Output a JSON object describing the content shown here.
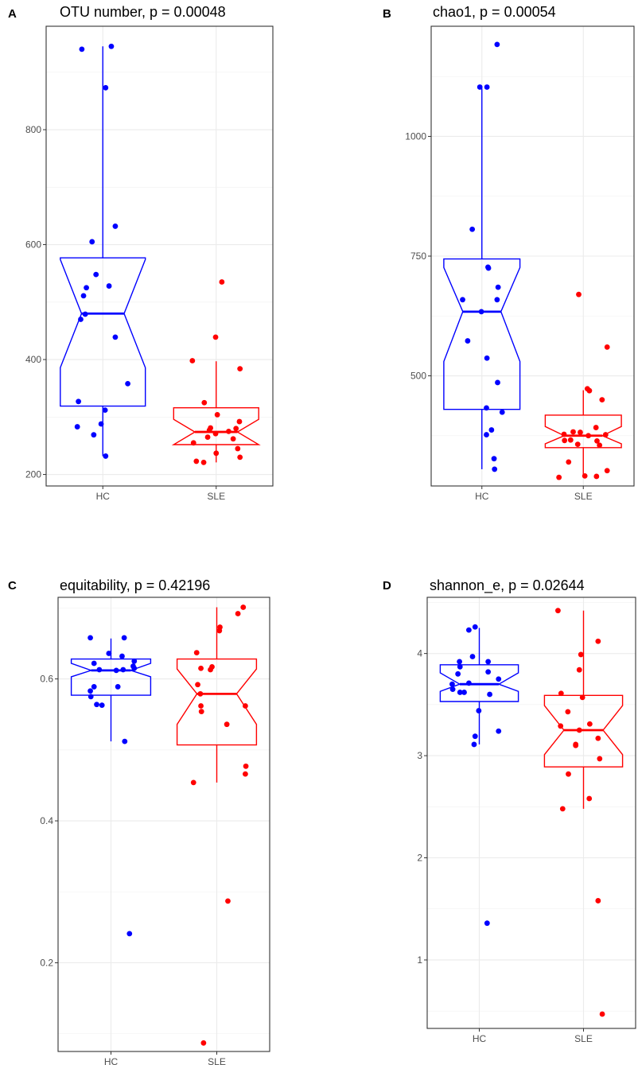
{
  "chart_data": [
    {
      "type": "boxplot",
      "panel_label": "A",
      "title": "OTU number, p = 0.00048",
      "categories": [
        "HC",
        "SLE"
      ],
      "ylim": [
        180,
        980
      ],
      "yticks": [
        200,
        400,
        600,
        800
      ],
      "grid": true,
      "notched": true,
      "series": [
        {
          "name": "HC",
          "color": "#0000ff",
          "box": {
            "whisker_low": 232,
            "q1": 319,
            "median": 480,
            "q3": 577,
            "whisker_high": 945,
            "notch_low": 386,
            "notch_high": 574
          },
          "points": [
            {
              "jitter": -0.37,
              "y": 940
            },
            {
              "jitter": 0.15,
              "y": 945
            },
            {
              "jitter": 0.05,
              "y": 873
            },
            {
              "jitter": 0.22,
              "y": 632
            },
            {
              "jitter": -0.19,
              "y": 605
            },
            {
              "jitter": -0.12,
              "y": 548
            },
            {
              "jitter": 0.11,
              "y": 528
            },
            {
              "jitter": -0.29,
              "y": 525
            },
            {
              "jitter": -0.34,
              "y": 511
            },
            {
              "jitter": -0.31,
              "y": 479
            },
            {
              "jitter": -0.39,
              "y": 470
            },
            {
              "jitter": 0.22,
              "y": 439
            },
            {
              "jitter": 0.44,
              "y": 358
            },
            {
              "jitter": -0.43,
              "y": 327
            },
            {
              "jitter": 0.04,
              "y": 312
            },
            {
              "jitter": -0.03,
              "y": 288
            },
            {
              "jitter": -0.45,
              "y": 283
            },
            {
              "jitter": -0.16,
              "y": 269
            },
            {
              "jitter": 0.05,
              "y": 232
            }
          ]
        },
        {
          "name": "SLE",
          "color": "#ff0000",
          "box": {
            "whisker_low": 221,
            "q1": 252,
            "median": 274,
            "q3": 316,
            "whisker_high": 397,
            "notch_low": 252,
            "notch_high": 296
          },
          "points": [
            {
              "jitter": 0.1,
              "y": 535
            },
            {
              "jitter": -0.01,
              "y": 439
            },
            {
              "jitter": -0.42,
              "y": 398
            },
            {
              "jitter": 0.42,
              "y": 384
            },
            {
              "jitter": -0.21,
              "y": 325
            },
            {
              "jitter": 0.02,
              "y": 304
            },
            {
              "jitter": 0.41,
              "y": 292
            },
            {
              "jitter": -0.1,
              "y": 281
            },
            {
              "jitter": 0.35,
              "y": 280
            },
            {
              "jitter": -0.12,
              "y": 277
            },
            {
              "jitter": 0.22,
              "y": 275
            },
            {
              "jitter": -0.01,
              "y": 271
            },
            {
              "jitter": 0.3,
              "y": 262
            },
            {
              "jitter": -0.15,
              "y": 265
            },
            {
              "jitter": -0.4,
              "y": 255
            },
            {
              "jitter": 0.38,
              "y": 245
            },
            {
              "jitter": 0.0,
              "y": 237
            },
            {
              "jitter": 0.42,
              "y": 230
            },
            {
              "jitter": -0.35,
              "y": 223
            },
            {
              "jitter": -0.22,
              "y": 221
            }
          ]
        }
      ]
    },
    {
      "type": "boxplot",
      "panel_label": "B",
      "title": "chao1, p = 0.00054",
      "categories": [
        "HC",
        "SLE"
      ],
      "ylim": [
        270,
        1230
      ],
      "yticks": [
        500,
        750,
        1000
      ],
      "grid": true,
      "notched": true,
      "series": [
        {
          "name": "HC",
          "color": "#0000ff",
          "box": {
            "whisker_low": 305,
            "q1": 430,
            "median": 634,
            "q3": 744,
            "whisker_high": 1100,
            "notch_low": 530,
            "notch_high": 726
          },
          "points": [
            {
              "jitter": 0.3,
              "y": 1192
            },
            {
              "jitter": -0.04,
              "y": 1103
            },
            {
              "jitter": 0.1,
              "y": 1103
            },
            {
              "jitter": -0.19,
              "y": 806
            },
            {
              "jitter": 0.12,
              "y": 727
            },
            {
              "jitter": 0.13,
              "y": 725
            },
            {
              "jitter": 0.32,
              "y": 685
            },
            {
              "jitter": -0.38,
              "y": 659
            },
            {
              "jitter": 0.3,
              "y": 659
            },
            {
              "jitter": -0.01,
              "y": 634
            },
            {
              "jitter": -0.28,
              "y": 573
            },
            {
              "jitter": 0.1,
              "y": 537
            },
            {
              "jitter": 0.31,
              "y": 486
            },
            {
              "jitter": 0.4,
              "y": 424
            },
            {
              "jitter": 0.09,
              "y": 433
            },
            {
              "jitter": 0.19,
              "y": 387
            },
            {
              "jitter": 0.09,
              "y": 377
            },
            {
              "jitter": 0.24,
              "y": 327
            },
            {
              "jitter": 0.25,
              "y": 305
            }
          ]
        },
        {
          "name": "SLE",
          "color": "#ff0000",
          "box": {
            "whisker_low": 290,
            "q1": 350,
            "median": 375,
            "q3": 418,
            "whisker_high": 470,
            "notch_low": 358,
            "notch_high": 394
          },
          "points": [
            {
              "jitter": -0.09,
              "y": 670
            },
            {
              "jitter": 0.47,
              "y": 560
            },
            {
              "jitter": 0.08,
              "y": 473
            },
            {
              "jitter": 0.12,
              "y": 469
            },
            {
              "jitter": 0.37,
              "y": 450
            },
            {
              "jitter": 0.25,
              "y": 392
            },
            {
              "jitter": 0.44,
              "y": 377
            },
            {
              "jitter": -0.38,
              "y": 378
            },
            {
              "jitter": -0.2,
              "y": 383
            },
            {
              "jitter": -0.06,
              "y": 382
            },
            {
              "jitter": 0.1,
              "y": 375
            },
            {
              "jitter": -0.25,
              "y": 366
            },
            {
              "jitter": -0.37,
              "y": 365
            },
            {
              "jitter": 0.27,
              "y": 364
            },
            {
              "jitter": -0.11,
              "y": 357
            },
            {
              "jitter": 0.32,
              "y": 355
            },
            {
              "jitter": -0.29,
              "y": 320
            },
            {
              "jitter": 0.47,
              "y": 302
            },
            {
              "jitter": -0.48,
              "y": 288
            },
            {
              "jitter": 0.03,
              "y": 291
            },
            {
              "jitter": 0.26,
              "y": 290
            }
          ]
        }
      ]
    },
    {
      "type": "boxplot",
      "panel_label": "C",
      "title": "equitability, p =  0.42196",
      "categories": [
        "HC",
        "SLE"
      ],
      "ylim": [
        0.075,
        0.715
      ],
      "yticks": [
        0.2,
        0.4,
        0.6
      ],
      "grid": true,
      "notched": true,
      "series": [
        {
          "name": "HC",
          "color": "#0000ff",
          "box": {
            "whisker_low": 0.512,
            "q1": 0.577,
            "median": 0.612,
            "q3": 0.628,
            "whisker_high": 0.657,
            "notch_low": 0.603,
            "notch_high": 0.622
          },
          "points": [
            {
              "jitter": -0.39,
              "y": 0.658
            },
            {
              "jitter": 0.25,
              "y": 0.658
            },
            {
              "jitter": -0.04,
              "y": 0.636
            },
            {
              "jitter": 0.21,
              "y": 0.632
            },
            {
              "jitter": -0.32,
              "y": 0.622
            },
            {
              "jitter": 0.44,
              "y": 0.625
            },
            {
              "jitter": 0.42,
              "y": 0.618
            },
            {
              "jitter": 0.44,
              "y": 0.615
            },
            {
              "jitter": -0.22,
              "y": 0.613
            },
            {
              "jitter": 0.23,
              "y": 0.613
            },
            {
              "jitter": 0.1,
              "y": 0.612
            },
            {
              "jitter": -0.32,
              "y": 0.589
            },
            {
              "jitter": 0.13,
              "y": 0.589
            },
            {
              "jitter": -0.39,
              "y": 0.583
            },
            {
              "jitter": -0.38,
              "y": 0.575
            },
            {
              "jitter": -0.27,
              "y": 0.564
            },
            {
              "jitter": -0.17,
              "y": 0.563
            },
            {
              "jitter": 0.26,
              "y": 0.512
            },
            {
              "jitter": 0.35,
              "y": 0.241
            }
          ]
        },
        {
          "name": "SLE",
          "color": "#ff0000",
          "box": {
            "whisker_low": 0.454,
            "q1": 0.507,
            "median": 0.579,
            "q3": 0.628,
            "whisker_high": 0.701,
            "notch_low": 0.536,
            "notch_high": 0.614
          },
          "points": [
            {
              "jitter": 0.5,
              "y": 0.701
            },
            {
              "jitter": 0.4,
              "y": 0.692
            },
            {
              "jitter": 0.06,
              "y": 0.673
            },
            {
              "jitter": 0.05,
              "y": 0.668
            },
            {
              "jitter": -0.38,
              "y": 0.637
            },
            {
              "jitter": -0.3,
              "y": 0.615
            },
            {
              "jitter": -0.09,
              "y": 0.617
            },
            {
              "jitter": -0.12,
              "y": 0.613
            },
            {
              "jitter": -0.36,
              "y": 0.592
            },
            {
              "jitter": -0.31,
              "y": 0.579
            },
            {
              "jitter": -0.3,
              "y": 0.562
            },
            {
              "jitter": 0.54,
              "y": 0.562
            },
            {
              "jitter": -0.29,
              "y": 0.554
            },
            {
              "jitter": 0.19,
              "y": 0.536
            },
            {
              "jitter": 0.55,
              "y": 0.477
            },
            {
              "jitter": 0.54,
              "y": 0.466
            },
            {
              "jitter": -0.44,
              "y": 0.454
            },
            {
              "jitter": 0.21,
              "y": 0.287
            },
            {
              "jitter": -0.25,
              "y": 0.087
            }
          ]
        }
      ]
    },
    {
      "type": "boxplot",
      "panel_label": "D",
      "title": "shannon_e, p =  0.02644",
      "categories": [
        "HC",
        "SLE"
      ],
      "ylim": [
        0.33,
        4.55
      ],
      "yticks": [
        1,
        2,
        3,
        4
      ],
      "grid": true,
      "notched": true,
      "series": [
        {
          "name": "HC",
          "color": "#0000ff",
          "box": {
            "whisker_low": 3.11,
            "q1": 3.53,
            "median": 3.7,
            "q3": 3.89,
            "whisker_high": 4.25,
            "notch_low": 3.63,
            "notch_high": 3.81
          },
          "points": [
            {
              "jitter": -0.08,
              "y": 4.26
            },
            {
              "jitter": -0.2,
              "y": 4.23
            },
            {
              "jitter": -0.13,
              "y": 3.97
            },
            {
              "jitter": 0.17,
              "y": 3.92
            },
            {
              "jitter": -0.38,
              "y": 3.92
            },
            {
              "jitter": -0.37,
              "y": 3.87
            },
            {
              "jitter": 0.17,
              "y": 3.82
            },
            {
              "jitter": -0.41,
              "y": 3.8
            },
            {
              "jitter": 0.37,
              "y": 3.75
            },
            {
              "jitter": -0.2,
              "y": 3.71
            },
            {
              "jitter": -0.52,
              "y": 3.7
            },
            {
              "jitter": -0.51,
              "y": 3.65
            },
            {
              "jitter": -0.29,
              "y": 3.62
            },
            {
              "jitter": -0.37,
              "y": 3.62
            },
            {
              "jitter": 0.2,
              "y": 3.6
            },
            {
              "jitter": -0.01,
              "y": 3.44
            },
            {
              "jitter": 0.37,
              "y": 3.24
            },
            {
              "jitter": -0.08,
              "y": 3.19
            },
            {
              "jitter": -0.1,
              "y": 3.11
            },
            {
              "jitter": 0.15,
              "y": 1.36
            }
          ]
        },
        {
          "name": "SLE",
          "color": "#ff0000",
          "box": {
            "whisker_low": 2.48,
            "q1": 2.89,
            "median": 3.25,
            "q3": 3.59,
            "whisker_high": 4.42,
            "notch_low": 3.01,
            "notch_high": 3.49
          },
          "points": [
            {
              "jitter": -0.49,
              "y": 4.42
            },
            {
              "jitter": 0.28,
              "y": 4.12
            },
            {
              "jitter": -0.05,
              "y": 3.99
            },
            {
              "jitter": -0.08,
              "y": 3.84
            },
            {
              "jitter": -0.43,
              "y": 3.61
            },
            {
              "jitter": -0.02,
              "y": 3.57
            },
            {
              "jitter": -0.3,
              "y": 3.43
            },
            {
              "jitter": -0.44,
              "y": 3.29
            },
            {
              "jitter": 0.12,
              "y": 3.31
            },
            {
              "jitter": -0.08,
              "y": 3.25
            },
            {
              "jitter": 0.28,
              "y": 3.17
            },
            {
              "jitter": -0.15,
              "y": 3.11
            },
            {
              "jitter": -0.15,
              "y": 3.1
            },
            {
              "jitter": 0.31,
              "y": 2.97
            },
            {
              "jitter": -0.29,
              "y": 2.82
            },
            {
              "jitter": 0.11,
              "y": 2.58
            },
            {
              "jitter": -0.4,
              "y": 2.48
            },
            {
              "jitter": 0.28,
              "y": 1.58
            },
            {
              "jitter": 0.36,
              "y": 0.47
            }
          ]
        }
      ]
    }
  ]
}
